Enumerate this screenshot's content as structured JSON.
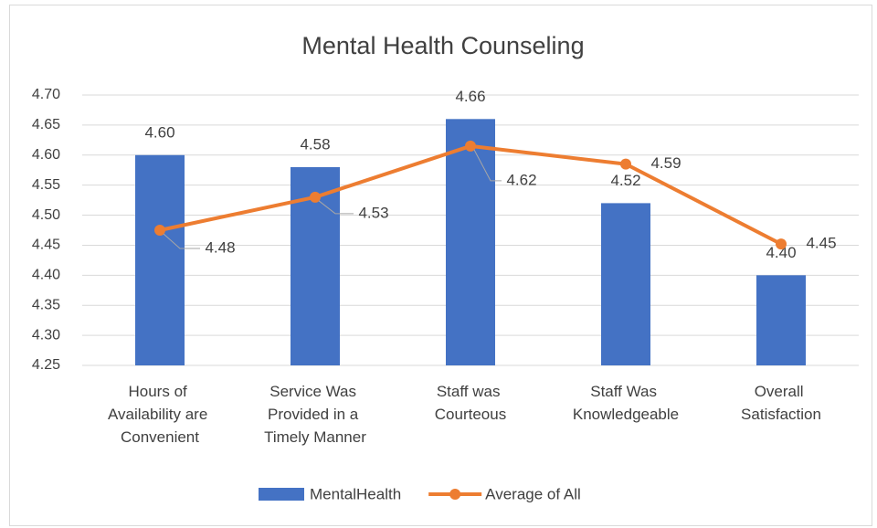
{
  "chart_data": {
    "type": "bar_line",
    "title": "Mental Health Counseling",
    "categories": [
      "Hours of Availability are Convenient",
      "Service Was Provided in a Timely Manner",
      "Staff was Courteous",
      "Staff Was Knowledgeable",
      "Overall Satisfaction"
    ],
    "series": [
      {
        "name": "MentalHealth",
        "type": "bar",
        "color": "#4472c4",
        "values": [
          4.6,
          4.58,
          4.66,
          4.52,
          4.4
        ],
        "value_labels": [
          "4.60",
          "4.58",
          "4.66",
          "4.52",
          "4.40"
        ]
      },
      {
        "name": "Average of All",
        "type": "line",
        "color": "#ed7d31",
        "values": [
          4.475,
          4.53,
          4.615,
          4.585,
          4.452
        ],
        "value_labels": [
          "4.48",
          "4.53",
          "4.62",
          "4.59",
          "4.45"
        ]
      }
    ],
    "ylim": [
      4.25,
      4.7
    ],
    "yticks": [
      {
        "value": 4.25,
        "label": "4.25"
      },
      {
        "value": 4.3,
        "label": "4.30"
      },
      {
        "value": 4.35,
        "label": "4.35"
      },
      {
        "value": 4.4,
        "label": "4.40"
      },
      {
        "value": 4.45,
        "label": "4.45"
      },
      {
        "value": 4.5,
        "label": "4.50"
      },
      {
        "value": 4.55,
        "label": "4.55"
      },
      {
        "value": 4.6,
        "label": "4.60"
      },
      {
        "value": 4.65,
        "label": "4.65"
      },
      {
        "value": 4.7,
        "label": "4.70"
      }
    ],
    "grid": true,
    "legend": "bottom"
  }
}
